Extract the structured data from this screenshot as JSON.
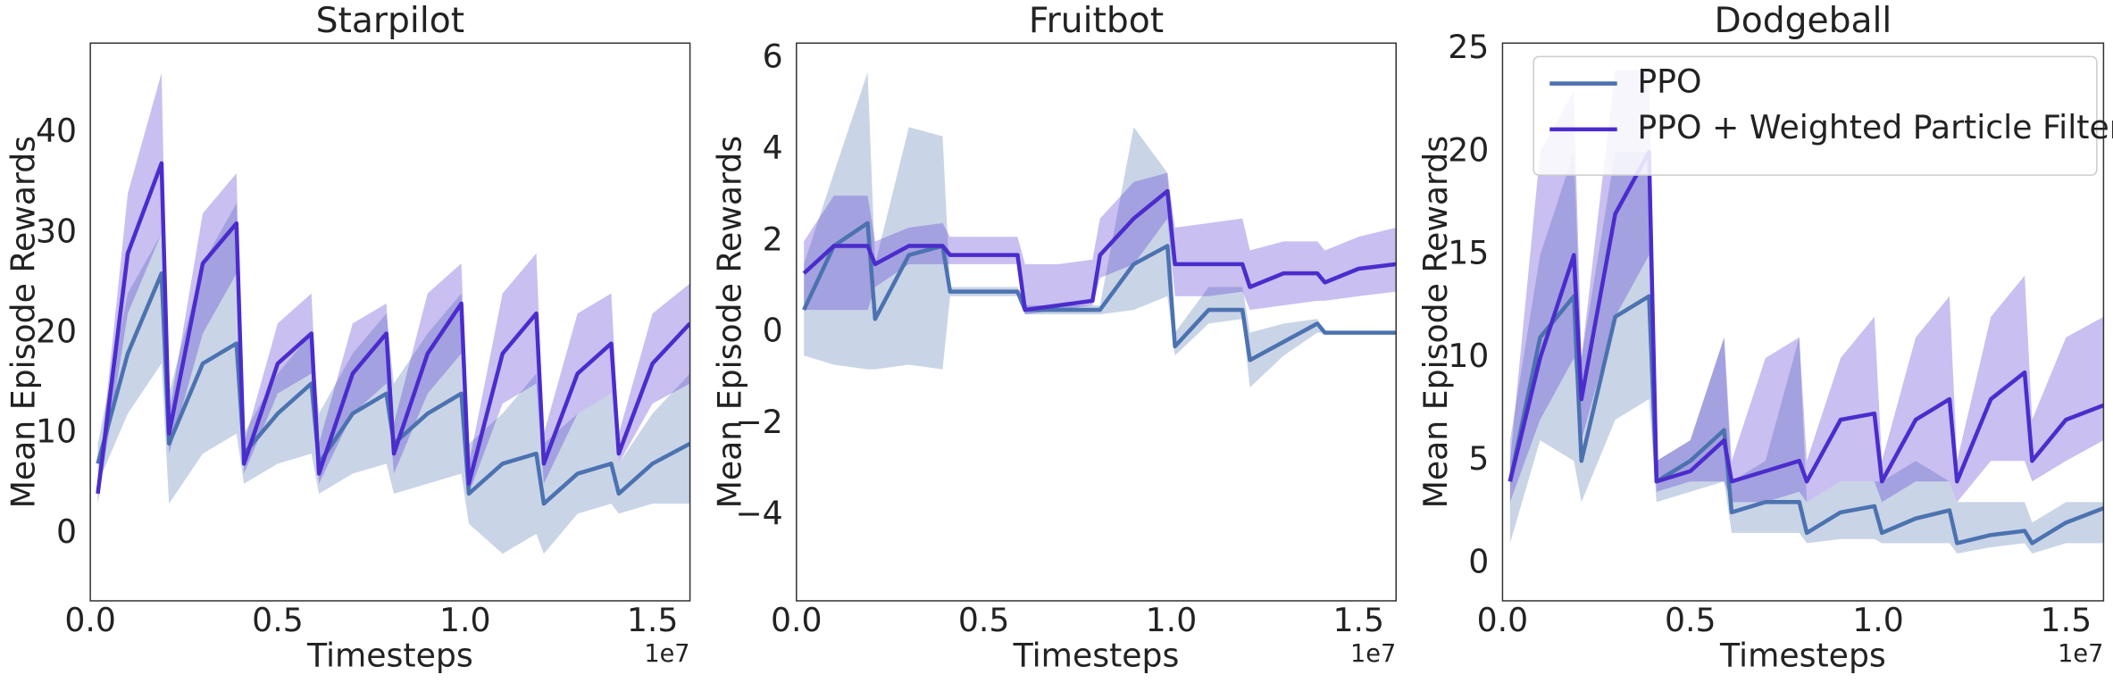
{
  "chart_data": [
    {
      "type": "line",
      "title": "Starpilot",
      "x_label": "Timesteps",
      "y_label": "Mean Episode Rewards",
      "x_offset_label": "1e7",
      "x": [
        0.02,
        0.1,
        0.19,
        0.21,
        0.3,
        0.39,
        0.41,
        0.5,
        0.59,
        0.61,
        0.7,
        0.79,
        0.81,
        0.9,
        0.99,
        1.01,
        1.1,
        1.19,
        1.21,
        1.3,
        1.39,
        1.41,
        1.5,
        1.6
      ],
      "xlim": [
        0,
        1.6
      ],
      "xticks": [
        {
          "value": 0,
          "label": "0.0"
        },
        {
          "value": 0.5,
          "label": "0.5"
        },
        {
          "value": 1,
          "label": "1.0"
        },
        {
          "value": 1.5,
          "label": "1.5"
        }
      ],
      "ylim": [
        -6.7,
        49
      ],
      "yticks": [
        0,
        10,
        20,
        30,
        40
      ],
      "series": [
        {
          "color": "#4c72b0",
          "values": [
            7,
            18,
            26,
            9,
            17,
            19,
            8,
            12,
            15,
            7,
            12,
            14,
            9,
            12,
            14,
            4,
            7,
            8,
            3,
            6,
            7,
            4,
            7,
            9
          ],
          "lower": [
            5,
            12,
            17,
            3,
            8,
            10,
            5,
            7,
            8,
            4,
            6,
            7,
            4,
            5,
            6,
            1,
            -2,
            0,
            -2,
            2,
            3,
            2,
            3,
            3
          ],
          "upper": [
            9,
            24,
            30,
            14,
            27,
            33,
            10,
            16,
            20,
            12,
            18,
            22,
            15,
            20,
            24,
            9,
            12,
            16,
            9,
            12,
            14,
            7,
            12,
            16
          ]
        },
        {
          "color": "#4b2ccc",
          "values": [
            4,
            28,
            37,
            10,
            27,
            31,
            7,
            17,
            20,
            6,
            16,
            20,
            8,
            18,
            23,
            5,
            18,
            22,
            7,
            16,
            19,
            8,
            17,
            21
          ],
          "lower": [
            3,
            22,
            30,
            8,
            20,
            26,
            6,
            14,
            16,
            5,
            12,
            15,
            6,
            14,
            18,
            4,
            13,
            15,
            5,
            12,
            14,
            7,
            13,
            15
          ],
          "upper": [
            5,
            34,
            46,
            12,
            32,
            36,
            9,
            21,
            24,
            9,
            21,
            23,
            11,
            24,
            27,
            7,
            24,
            28,
            10,
            22,
            24,
            10,
            22,
            25
          ]
        }
      ]
    },
    {
      "type": "line",
      "title": "Fruitbot",
      "x_label": "Timesteps",
      "y_label": "Mean Episode Rewards",
      "x_offset_label": "1e7",
      "x": [
        0.02,
        0.1,
        0.19,
        0.21,
        0.3,
        0.39,
        0.41,
        0.5,
        0.59,
        0.61,
        0.7,
        0.79,
        0.81,
        0.9,
        0.99,
        1.01,
        1.1,
        1.19,
        1.21,
        1.3,
        1.39,
        1.41,
        1.5,
        1.6
      ],
      "xlim": [
        0,
        1.6
      ],
      "xticks": [
        {
          "value": 0,
          "label": "0.0"
        },
        {
          "value": 0.5,
          "label": "0.5"
        },
        {
          "value": 1,
          "label": "1.0"
        },
        {
          "value": 1.5,
          "label": "1.5"
        }
      ],
      "ylim": [
        -5.87,
        6.34
      ],
      "yticks": [
        {
          "value": -4,
          "label": "−4"
        },
        {
          "value": -2,
          "label": "−2"
        },
        0,
        2,
        4,
        6
      ],
      "series": [
        {
          "color": "#4c72b0",
          "values": [
            0.5,
            1.9,
            2.4,
            0.3,
            1.7,
            1.9,
            0.9,
            0.9,
            0.9,
            0.5,
            0.5,
            0.5,
            0.5,
            1.5,
            1.9,
            -0.3,
            0.5,
            0.5,
            -0.6,
            -0.2,
            0.2,
            0,
            0,
            0
          ],
          "lower": [
            -0.5,
            -0.7,
            -0.8,
            -0.8,
            -0.7,
            -0.8,
            0.8,
            0.8,
            0.8,
            0.4,
            0.4,
            0.4,
            0.4,
            0.5,
            0.8,
            -0.5,
            0.2,
            0.3,
            -1.2,
            -0.5,
            0,
            0,
            0,
            0
          ],
          "upper": [
            1.5,
            3.5,
            5.7,
            1.5,
            4.5,
            4.3,
            1,
            1,
            1,
            0.6,
            0.6,
            0.6,
            0.6,
            4.5,
            3.5,
            0,
            1,
            1,
            0,
            0.2,
            0.3,
            0,
            0,
            0
          ]
        },
        {
          "color": "#4b2ccc",
          "values": [
            1.3,
            1.9,
            1.9,
            1.5,
            1.9,
            1.9,
            1.7,
            1.7,
            1.7,
            0.5,
            0.6,
            0.7,
            1.7,
            2.5,
            3.1,
            1.5,
            1.5,
            1.5,
            1,
            1.3,
            1.3,
            1.1,
            1.4,
            1.5
          ],
          "lower": [
            0.5,
            0.5,
            0.5,
            1,
            1.5,
            1.5,
            1.5,
            1.5,
            1.5,
            0.4,
            0.5,
            0.6,
            1.2,
            1.5,
            2.5,
            0.8,
            0.8,
            0.9,
            0.5,
            0.6,
            0.7,
            0.7,
            0.8,
            0.9
          ],
          "upper": [
            2,
            3,
            3,
            2,
            2.3,
            2.4,
            2.1,
            2.1,
            2.1,
            1.5,
            1.5,
            1.6,
            2.5,
            3.3,
            3.5,
            2.3,
            2.4,
            2.5,
            1.8,
            2,
            2,
            1.8,
            2.1,
            2.3
          ]
        }
      ]
    },
    {
      "type": "line",
      "title": "Dodgeball",
      "x_label": "Timesteps",
      "y_label": "Mean Episode Rewards",
      "x_offset_label": "1e7",
      "x": [
        0.02,
        0.1,
        0.19,
        0.21,
        0.3,
        0.39,
        0.41,
        0.5,
        0.59,
        0.61,
        0.7,
        0.79,
        0.81,
        0.9,
        0.99,
        1.01,
        1.1,
        1.19,
        1.21,
        1.3,
        1.39,
        1.41,
        1.5,
        1.6
      ],
      "xlim": [
        0,
        1.6
      ],
      "xticks": [
        {
          "value": 0,
          "label": "0.0"
        },
        {
          "value": 0.5,
          "label": "0.5"
        },
        {
          "value": 1,
          "label": "1.0"
        },
        {
          "value": 1.5,
          "label": "1.5"
        }
      ],
      "ylim": [
        -1.8,
        25.3
      ],
      "yticks": [
        0,
        5,
        10,
        15,
        20,
        25
      ],
      "legend": "upper right",
      "series": [
        {
          "name": "PPO",
          "color": "#4c72b0",
          "values": [
            4,
            11,
            13,
            5,
            12,
            13,
            4,
            5,
            6.5,
            2.5,
            3,
            3,
            1.5,
            2.5,
            2.8,
            1.5,
            2.2,
            2.6,
            1,
            1.4,
            1.6,
            1,
            2,
            2.7
          ],
          "lower": [
            1,
            6,
            5,
            3,
            7,
            8,
            3,
            3.5,
            4,
            1.5,
            1.5,
            1.5,
            1,
            1.2,
            1.2,
            1,
            1,
            1,
            0.5,
            0.8,
            1,
            0.5,
            1,
            1
          ],
          "upper": [
            6,
            15,
            20,
            10,
            20,
            20,
            5,
            6,
            11,
            4,
            5,
            11,
            3,
            4,
            4,
            4,
            5,
            4,
            3,
            3,
            3,
            2,
            3,
            3
          ]
        },
        {
          "name": "PPO + Weighted Particle Filter",
          "color": "#4b2ccc",
          "values": [
            4,
            10,
            15,
            8,
            17,
            20,
            4,
            4.5,
            6,
            4,
            4.5,
            5,
            4,
            7,
            7.3,
            4,
            7,
            8,
            4,
            8,
            9.3,
            5,
            7,
            7.7
          ],
          "lower": [
            3,
            7,
            10,
            6,
            12,
            15,
            3.5,
            4,
            4,
            3,
            3,
            3.5,
            3,
            4,
            4,
            3,
            4,
            4,
            3,
            5,
            5,
            4,
            5,
            6
          ],
          "upper": [
            5,
            20,
            23,
            10,
            24,
            24,
            5,
            6,
            11,
            5,
            10,
            11,
            5,
            10,
            12,
            5,
            11,
            13,
            5,
            12,
            14,
            7,
            11,
            12
          ]
        }
      ]
    }
  ]
}
